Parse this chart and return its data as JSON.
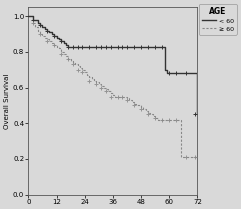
{
  "title": "",
  "xlabel": "",
  "ylabel": "Overall Survival",
  "xlim": [
    0,
    72
  ],
  "ylim": [
    0.0,
    1.05
  ],
  "xticks": [
    0,
    12,
    24,
    36,
    48,
    60,
    72
  ],
  "yticks": [
    0.0,
    0.2,
    0.4,
    0.6,
    0.8,
    1.0
  ],
  "legend_title": "AGE",
  "legend_label1": "< 60",
  "legend_label2": "≥ 60",
  "bg_color": "#d9d9d9",
  "line1_color": "#333333",
  "line2_color": "#888888",
  "line1_x": [
    0,
    2,
    4,
    5,
    6,
    7,
    8,
    9,
    10,
    11,
    12,
    13,
    14,
    15,
    16,
    17,
    18,
    19,
    20,
    21,
    22,
    23,
    24,
    25,
    26,
    27,
    28,
    29,
    30,
    31,
    32,
    33,
    34,
    35,
    36,
    37,
    38,
    39,
    40,
    41,
    42,
    43,
    44,
    45,
    46,
    47,
    48,
    49,
    50,
    51,
    52,
    53,
    54,
    55,
    56,
    57,
    58,
    59,
    60,
    61,
    62,
    63,
    64,
    65,
    66,
    67,
    68,
    69,
    70,
    71,
    72
  ],
  "line1_y": [
    1.0,
    0.98,
    0.96,
    0.95,
    0.94,
    0.93,
    0.92,
    0.91,
    0.9,
    0.89,
    0.88,
    0.87,
    0.86,
    0.85,
    0.84,
    0.83,
    0.83,
    0.83,
    0.83,
    0.83,
    0.83,
    0.83,
    0.83,
    0.83,
    0.83,
    0.83,
    0.83,
    0.83,
    0.83,
    0.83,
    0.83,
    0.83,
    0.83,
    0.83,
    0.83,
    0.83,
    0.83,
    0.83,
    0.83,
    0.83,
    0.83,
    0.83,
    0.83,
    0.83,
    0.83,
    0.83,
    0.83,
    0.83,
    0.83,
    0.83,
    0.83,
    0.83,
    0.83,
    0.83,
    0.83,
    0.83,
    0.7,
    0.68,
    0.68,
    0.68,
    0.68,
    0.68,
    0.68,
    0.68,
    0.68,
    0.68,
    0.68,
    0.68,
    0.68,
    0.68,
    0.45
  ],
  "line2_x": [
    0,
    2,
    3,
    4,
    5,
    6,
    7,
    8,
    9,
    10,
    11,
    12,
    13,
    14,
    15,
    16,
    17,
    18,
    19,
    20,
    21,
    22,
    23,
    24,
    25,
    26,
    27,
    28,
    29,
    30,
    31,
    32,
    33,
    34,
    35,
    36,
    37,
    38,
    39,
    40,
    41,
    42,
    43,
    44,
    45,
    46,
    47,
    48,
    49,
    50,
    51,
    52,
    53,
    54,
    55,
    56,
    57,
    58,
    59,
    60,
    61,
    62,
    63,
    64,
    65,
    66,
    67,
    68,
    69,
    70,
    71,
    72
  ],
  "line2_y": [
    1.0,
    0.96,
    0.94,
    0.92,
    0.9,
    0.89,
    0.88,
    0.87,
    0.86,
    0.85,
    0.84,
    0.83,
    0.82,
    0.8,
    0.79,
    0.78,
    0.76,
    0.75,
    0.74,
    0.73,
    0.72,
    0.71,
    0.7,
    0.69,
    0.67,
    0.66,
    0.65,
    0.64,
    0.63,
    0.62,
    0.61,
    0.6,
    0.59,
    0.58,
    0.57,
    0.56,
    0.55,
    0.55,
    0.55,
    0.55,
    0.55,
    0.54,
    0.53,
    0.52,
    0.51,
    0.5,
    0.5,
    0.49,
    0.48,
    0.47,
    0.46,
    0.45,
    0.44,
    0.43,
    0.42,
    0.42,
    0.42,
    0.42,
    0.42,
    0.42,
    0.42,
    0.42,
    0.42,
    0.42,
    0.21,
    0.21,
    0.21,
    0.21,
    0.21,
    0.21,
    0.21,
    0.21
  ],
  "censor1_x": [
    2,
    5,
    8,
    11,
    14,
    17,
    19,
    21,
    23,
    26,
    29,
    31,
    33,
    35,
    38,
    40,
    42,
    45,
    48,
    51,
    54,
    57,
    60,
    63,
    67,
    71
  ],
  "censor1_y": [
    0.98,
    0.95,
    0.92,
    0.89,
    0.86,
    0.83,
    0.83,
    0.83,
    0.83,
    0.83,
    0.83,
    0.83,
    0.83,
    0.83,
    0.83,
    0.83,
    0.83,
    0.83,
    0.83,
    0.83,
    0.83,
    0.83,
    0.68,
    0.68,
    0.68,
    0.45
  ],
  "censor2_x": [
    2,
    5,
    8,
    11,
    14,
    17,
    19,
    21,
    23,
    26,
    29,
    31,
    33,
    35,
    38,
    40,
    42,
    45,
    48,
    51,
    54,
    57,
    60,
    63,
    67,
    71
  ],
  "censor2_y": [
    0.96,
    0.9,
    0.86,
    0.84,
    0.79,
    0.76,
    0.73,
    0.7,
    0.69,
    0.64,
    0.62,
    0.6,
    0.58,
    0.55,
    0.55,
    0.55,
    0.53,
    0.5,
    0.48,
    0.45,
    0.43,
    0.42,
    0.42,
    0.42,
    0.21,
    0.21
  ]
}
